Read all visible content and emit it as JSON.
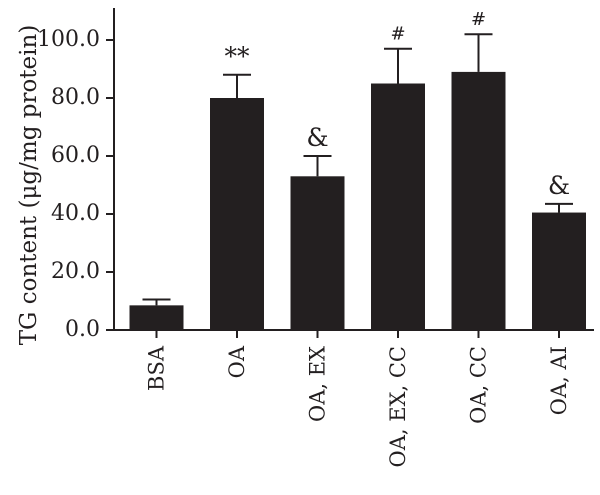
{
  "colors": {
    "bar": "#231f20",
    "axis": "#231f20",
    "background": "#ffffff"
  },
  "chart_data": {
    "type": "bar",
    "title": "",
    "xlabel": "",
    "ylabel": "TG content (μg/mg protein)",
    "ylim": [
      0,
      110
    ],
    "yticks": [
      0,
      20,
      40,
      60,
      80,
      100
    ],
    "ytick_labels": [
      "0.0",
      "20.0",
      "40.0",
      "60.0",
      "80.0",
      "100.0"
    ],
    "categories": [
      "BSA",
      "OA",
      "OA, EX",
      "OA, EX, CC",
      "OA, CC",
      "OA, AI"
    ],
    "values": [
      8.5,
      80,
      53,
      85,
      89,
      40.5
    ],
    "error_upper": [
      10.5,
      88,
      60,
      97,
      102,
      43.5
    ],
    "annotations": [
      "",
      "**",
      "&",
      "#",
      "#",
      "&"
    ],
    "grid": false,
    "legend": "none"
  }
}
